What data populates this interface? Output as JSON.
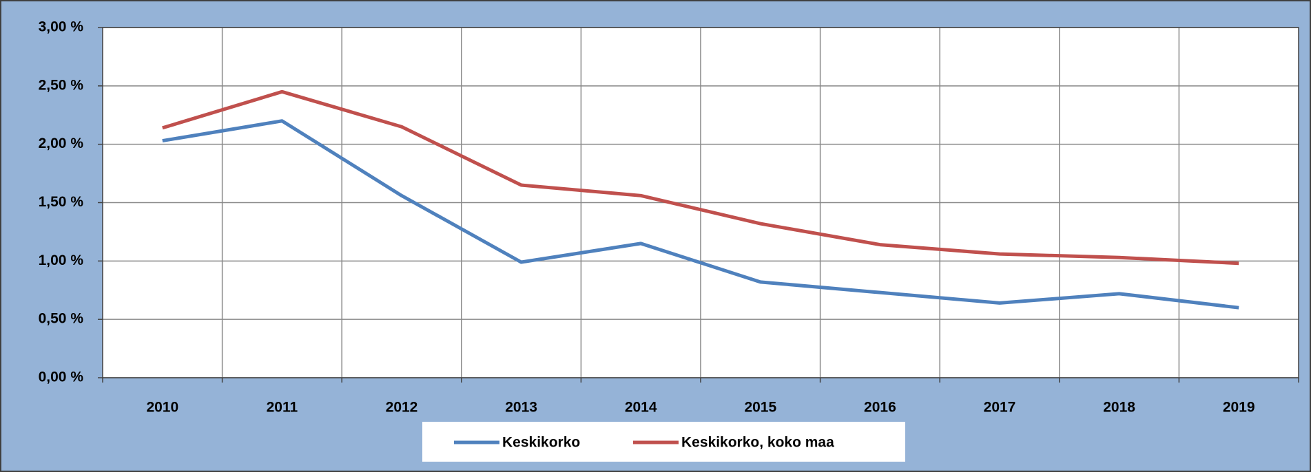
{
  "chart_data": {
    "type": "line",
    "categories": [
      "2010",
      "2011",
      "2012",
      "2013",
      "2014",
      "2015",
      "2016",
      "2017",
      "2018",
      "2019"
    ],
    "series": [
      {
        "name": "Keskikorko",
        "color": "#4f81bd",
        "values": [
          2.03,
          2.2,
          1.56,
          0.99,
          1.15,
          0.82,
          0.73,
          0.64,
          0.72,
          0.6
        ]
      },
      {
        "name": "Keskikorko, koko maa",
        "color": "#c0504d",
        "values": [
          2.14,
          2.45,
          2.15,
          1.65,
          1.56,
          1.32,
          1.14,
          1.06,
          1.03,
          0.98
        ]
      }
    ],
    "ylim": [
      0,
      3
    ],
    "yticks": [
      {
        "value": 0,
        "label": "0,00 %"
      },
      {
        "value": 0.5,
        "label": "0,50 %"
      },
      {
        "value": 1,
        "label": "1,00 %"
      },
      {
        "value": 1.5,
        "label": "1,50 %"
      },
      {
        "value": 2,
        "label": "2,00 %"
      },
      {
        "value": 2.5,
        "label": "2,50 %"
      },
      {
        "value": 3,
        "label": "3,00 %"
      }
    ],
    "grid": true,
    "legend": "bottom"
  }
}
